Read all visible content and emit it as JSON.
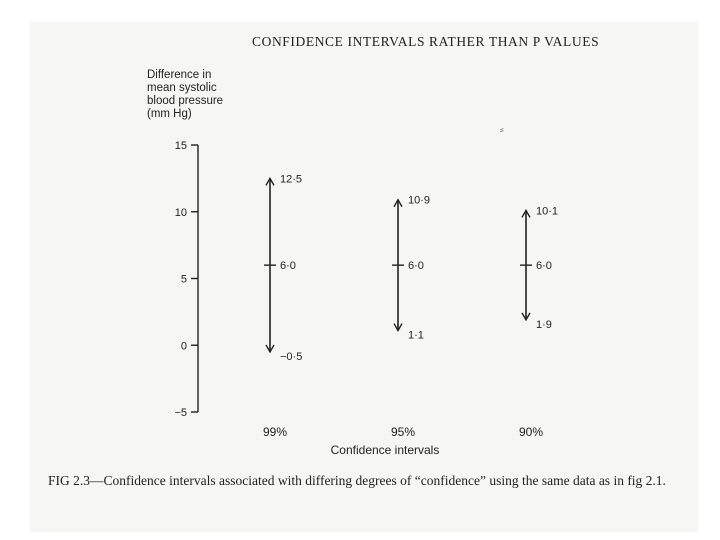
{
  "header": "CONFIDENCE INTERVALS RATHER THAN P VALUES",
  "caption": "FIG 2.3—Confidence intervals associated with differing degrees of “confidence” using the same data as in fig 2.1.",
  "chart_data": {
    "type": "errorbar",
    "title": "",
    "ylabel": "Difference in\nmean systolic\nblood pressure\n(mm Hg)",
    "xlabel": "Confidence intervals",
    "ylim": [
      -5,
      15
    ],
    "yticks": [
      "15",
      "10",
      "5",
      "0",
      "−5"
    ],
    "ytick_values": [
      15,
      10,
      5,
      0,
      -5
    ],
    "grid": false,
    "series": [
      {
        "category": "99%",
        "estimate": 6.0,
        "lower": -0.5,
        "upper": 12.5,
        "estimate_label": "6·0",
        "lower_label": "−0·5",
        "upper_label": "12·5"
      },
      {
        "category": "95%",
        "estimate": 6.0,
        "lower": 1.1,
        "upper": 10.9,
        "estimate_label": "6·0",
        "lower_label": "1·1",
        "upper_label": "10·9"
      },
      {
        "category": "90%",
        "estimate": 6.0,
        "lower": 1.9,
        "upper": 10.1,
        "estimate_label": "6·0",
        "lower_label": "1·9",
        "upper_label": "10·1"
      }
    ],
    "colors": {
      "ink": "#222222"
    }
  }
}
